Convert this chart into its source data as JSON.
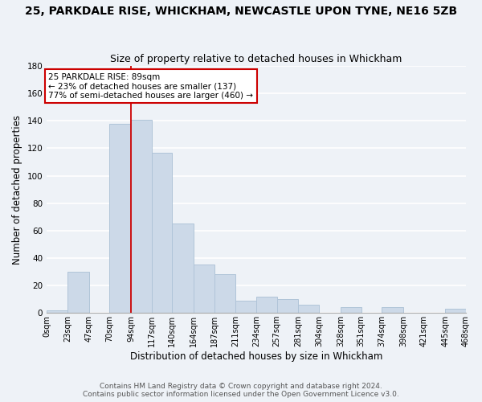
{
  "title": "25, PARKDALE RISE, WHICKHAM, NEWCASTLE UPON TYNE, NE16 5ZB",
  "subtitle": "Size of property relative to detached houses in Whickham",
  "xlabel": "Distribution of detached houses by size in Whickham",
  "ylabel": "Number of detached properties",
  "bar_color": "#ccd9e8",
  "bar_edge_color": "#b0c4d8",
  "bins": [
    0,
    23,
    47,
    70,
    94,
    117,
    140,
    164,
    187,
    211,
    234,
    257,
    281,
    304,
    328,
    351,
    374,
    398,
    421,
    445,
    468
  ],
  "counts": [
    2,
    30,
    0,
    138,
    141,
    117,
    65,
    35,
    28,
    9,
    12,
    10,
    6,
    0,
    4,
    0,
    4,
    0,
    0,
    3
  ],
  "tick_labels": [
    "0sqm",
    "23sqm",
    "47sqm",
    "70sqm",
    "94sqm",
    "117sqm",
    "140sqm",
    "164sqm",
    "187sqm",
    "211sqm",
    "234sqm",
    "257sqm",
    "281sqm",
    "304sqm",
    "328sqm",
    "351sqm",
    "374sqm",
    "398sqm",
    "421sqm",
    "445sqm",
    "468sqm"
  ],
  "ylim": [
    0,
    180
  ],
  "yticks": [
    0,
    20,
    40,
    60,
    80,
    100,
    120,
    140,
    160,
    180
  ],
  "property_line_x": 94,
  "annotation_title": "25 PARKDALE RISE: 89sqm",
  "annotation_line1": "← 23% of detached houses are smaller (137)",
  "annotation_line2": "77% of semi-detached houses are larger (460) →",
  "annotation_box_color": "#ffffff",
  "annotation_box_edge": "#cc0000",
  "property_line_color": "#cc0000",
  "footer_line1": "Contains HM Land Registry data © Crown copyright and database right 2024.",
  "footer_line2": "Contains public sector information licensed under the Open Government Licence v3.0.",
  "background_color": "#eef2f7",
  "grid_color": "#ffffff",
  "title_fontsize": 10,
  "subtitle_fontsize": 9,
  "axis_label_fontsize": 8.5,
  "tick_fontsize": 7,
  "annotation_fontsize": 7.5,
  "footer_fontsize": 6.5
}
